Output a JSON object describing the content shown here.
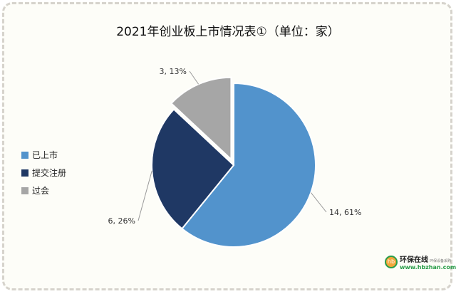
{
  "chart_data": {
    "type": "pie",
    "title": "2021年创业板上市情况表①（单位：家）",
    "slices": [
      {
        "name": "已上市",
        "value": 14,
        "percent": 61,
        "label": "14, 61%",
        "color": "#5293cc"
      },
      {
        "name": "提交注册",
        "value": 6,
        "percent": 26,
        "label": "6, 26%",
        "color": "#1f3864"
      },
      {
        "name": "过会",
        "value": 3,
        "percent": 13,
        "label": "3, 13%",
        "color": "#a6a6a6",
        "exploded": true
      }
    ],
    "legend_placement": "left"
  },
  "watermark": {
    "name": "环保在线",
    "tagline": "环保设备采购",
    "url": "www.hbzhan.com",
    "icon": "hb-logo-icon"
  }
}
